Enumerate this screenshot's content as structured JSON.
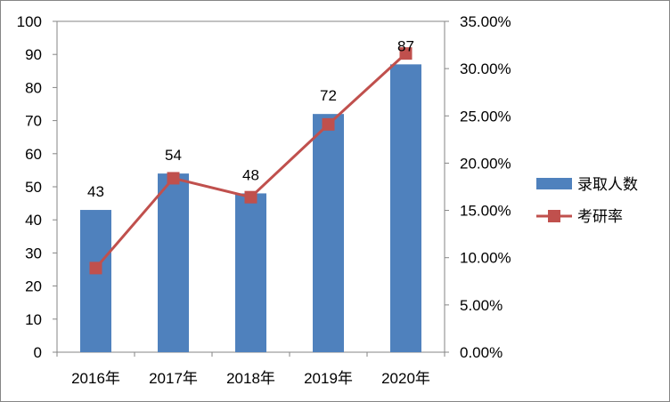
{
  "chart_data": {
    "type": "bar",
    "categories": [
      "2016年",
      "2017年",
      "2018年",
      "2019年",
      "2020年"
    ],
    "series": [
      {
        "name": "录取人数",
        "type": "bar",
        "axis": "left",
        "values": [
          43,
          54,
          48,
          72,
          87
        ],
        "data_labels": [
          "43",
          "54",
          "48",
          "72",
          "87"
        ]
      },
      {
        "name": "考研率",
        "type": "line",
        "axis": "right",
        "values": [
          8.9,
          18.4,
          16.4,
          24.1,
          31.6
        ],
        "unit": "%"
      }
    ],
    "y_left": {
      "ylim": [
        0,
        100
      ],
      "ticks": [
        "0",
        "10",
        "20",
        "30",
        "40",
        "50",
        "60",
        "70",
        "80",
        "90",
        "100"
      ]
    },
    "y_right": {
      "ylim": [
        0,
        35
      ],
      "ticks": [
        "0.00%",
        "5.00%",
        "10.00%",
        "15.00%",
        "20.00%",
        "25.00%",
        "30.00%",
        "35.00%"
      ]
    },
    "grid": false,
    "legend_position": "right",
    "colors": {
      "bar": "#4F81BD",
      "line": "#C0504D",
      "axis": "#868686"
    }
  }
}
